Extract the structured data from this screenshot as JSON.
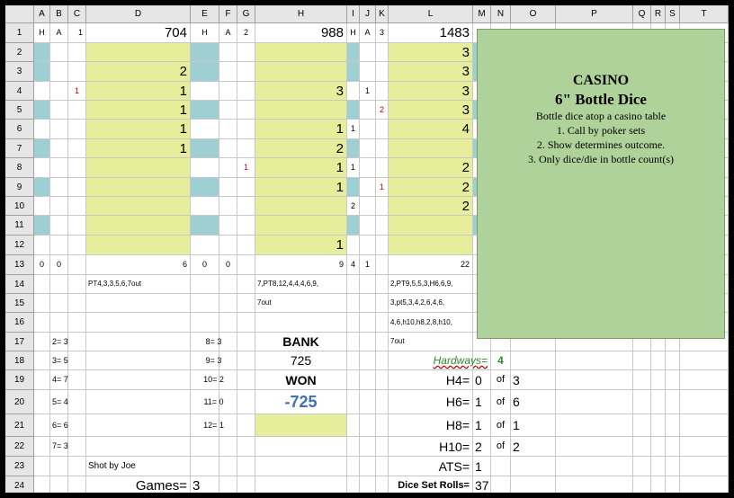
{
  "columns": [
    "A",
    "B",
    "C",
    "D",
    "E",
    "F",
    "G",
    "H",
    "I",
    "J",
    "K",
    "L",
    "M",
    "N",
    "O",
    "P",
    "Q",
    "R",
    "S",
    "T"
  ],
  "rows": [
    "1",
    "2",
    "3",
    "4",
    "5",
    "6",
    "7",
    "8",
    "9",
    "10",
    "11",
    "12",
    "13",
    "14",
    "15",
    "16",
    "17",
    "18",
    "19",
    "20",
    "21",
    "22",
    "23",
    "24"
  ],
  "row1": {
    "a": "H",
    "b": "A",
    "c": "1",
    "d": "704",
    "e": "H",
    "f": "A",
    "g": "2",
    "h": "988",
    "i": "H",
    "j": "A",
    "k": "3",
    "l": "1483"
  },
  "colD": {
    "r3": "2",
    "r4": "1",
    "r5": "1",
    "r6": "1",
    "r7": "1"
  },
  "colH": {
    "r4": "3",
    "r6": "1",
    "r7": "2",
    "r8": "1",
    "r9": "1",
    "r12": "1"
  },
  "colL": {
    "r2": "3",
    "r3": "3",
    "r4": "3",
    "r5": "3",
    "r6": "4",
    "r8": "2",
    "r9": "2",
    "r10": "2"
  },
  "marks": {
    "c4": "1",
    "g8": "1",
    "i6": "1",
    "i8": "1",
    "i10": "2",
    "j4": "1",
    "k5": "2",
    "k9": "1"
  },
  "row13": {
    "a": "0",
    "b": "0",
    "d": "6",
    "e": "0",
    "f": "0",
    "h": "9",
    "i": "4",
    "j": "1",
    "l": "22"
  },
  "points": {
    "d14": "PT4,3,3,5,6,7out",
    "h14": "7,PT8,12,4,4,4,6,9,",
    "h15": "7out",
    "l14": "2,PT9,5,5,3,H6,6,9,",
    "l15": "3,pt5,3,4,2,6,4,6,",
    "l16": "4,6,h10,h8,2,8,h10,",
    "l17": "7out"
  },
  "counts_left": [
    "2= 3",
    "3= 5",
    "4= 7",
    "5= 4",
    "6= 6",
    "7= 3"
  ],
  "counts_right": [
    "8= 3",
    "9= 3",
    "10= 2",
    "11= 0",
    "12= 1"
  ],
  "bank": {
    "label": "BANK",
    "value": "725",
    "won_label": "WON",
    "won_value": "-725"
  },
  "hardways": {
    "label": "Hardways=",
    "value": "4"
  },
  "hard_rows": [
    {
      "label": "H4=",
      "value": "0",
      "of": "of",
      "total": "3"
    },
    {
      "label": "H6=",
      "value": "1",
      "of": "of",
      "total": "6"
    },
    {
      "label": "H8=",
      "value": "1",
      "of": "of",
      "total": "1"
    },
    {
      "label": "H10=",
      "value": "2",
      "of": "of",
      "total": "2"
    }
  ],
  "ats": {
    "label": "ATS=",
    "value": "1"
  },
  "dice_set": {
    "label": "Dice Set Rolls=",
    "value": "37"
  },
  "shot_by": "Shot by Joe",
  "games": {
    "label": "Games=",
    "value": "3"
  },
  "note": {
    "title1": "CASINO",
    "title2": "6\" Bottle Dice",
    "lines": [
      "Bottle dice atop a casino table",
      "1. Call by poker sets",
      "2. Show determines outcome.",
      "3. Only dice/die in bottle count(s)"
    ]
  },
  "colors": {
    "yellow": "#e6ee9c",
    "teal": "#9ecfd2",
    "note_bg": "#aed29a",
    "won_value": "#3d6fb6",
    "hardways": "#2e8b2e",
    "red_mark": "#c00000"
  }
}
